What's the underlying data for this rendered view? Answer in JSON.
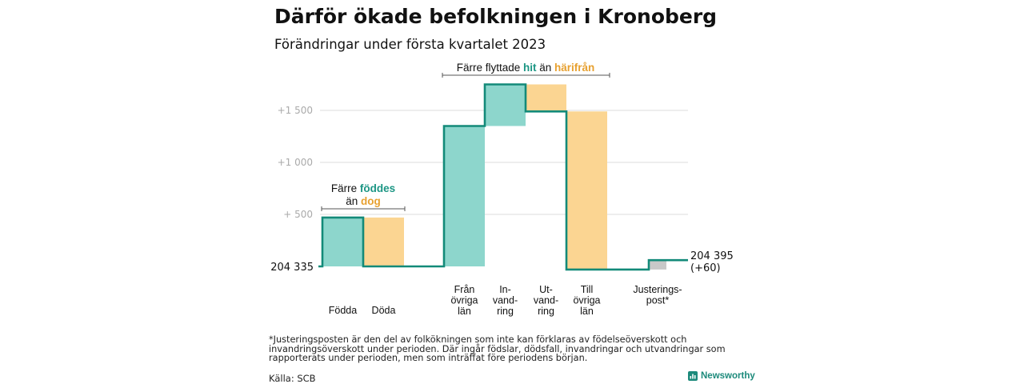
{
  "header": {
    "title": "Därför ökade befolkningen i Kronoberg",
    "subtitle": "Förändringar under första kvartalet 2023"
  },
  "chart_data": {
    "type": "waterfall",
    "baseline_label": "204 335",
    "end_label_value": "204 395",
    "end_label_change": "(+60)",
    "y_ticks": [
      {
        "value": 500,
        "label": "+ 500"
      },
      {
        "value": 1000,
        "label": "+1 000"
      },
      {
        "value": 1500,
        "label": "+1 500"
      }
    ],
    "ylim": [
      0,
      1800
    ],
    "steps": [
      {
        "id": "fodda",
        "label": [
          "Födda"
        ],
        "from": 0,
        "to": 470,
        "color": "increase"
      },
      {
        "id": "doda",
        "label": [
          "Döda"
        ],
        "from": 470,
        "to": 0,
        "color": "decrease"
      },
      {
        "id": "fran-ovriga-lan",
        "label": [
          "Från",
          "övriga",
          "län"
        ],
        "from": 0,
        "to": 1350,
        "color": "increase"
      },
      {
        "id": "invandring",
        "label": [
          "In-",
          "vand-",
          "ring"
        ],
        "from": 1350,
        "to": 1750,
        "color": "increase"
      },
      {
        "id": "utvandring",
        "label": [
          "Ut-",
          "vand-",
          "ring"
        ],
        "from": 1750,
        "to": 1490,
        "color": "decrease"
      },
      {
        "id": "till-ovriga-lan",
        "label": [
          "Till",
          "övriga",
          "län"
        ],
        "from": 1490,
        "to": -30,
        "color": "decrease"
      },
      {
        "id": "justeringspost",
        "label": [
          "Justerings-",
          "post*"
        ],
        "from": -30,
        "to": 60,
        "color": "adjustment"
      }
    ],
    "annotations": [
      {
        "id": "births-deaths",
        "line1": [
          {
            "text": "Färre ",
            "style": "plain"
          },
          {
            "text": "föddes",
            "style": "increase"
          }
        ],
        "line2": [
          {
            "text": "än ",
            "style": "plain"
          },
          {
            "text": "dog",
            "style": "decrease"
          }
        ]
      },
      {
        "id": "migration",
        "line1": [
          {
            "text": "Färre flyttade ",
            "style": "plain"
          },
          {
            "text": "hit",
            "style": "increase"
          },
          {
            "text": " än ",
            "style": "plain"
          },
          {
            "text": "härifrån",
            "style": "decrease"
          }
        ]
      }
    ],
    "colors": {
      "increase": "#8dd6cc",
      "decrease": "#fbd592",
      "adjustment": "#c8c8c8",
      "line": "#138a79",
      "increase_text": "#1c9684",
      "decrease_text": "#e7a02f",
      "grid": "#dddddd",
      "tick_text": "#aaaaaa"
    }
  },
  "footnote": "*Justeringsposten är den del av folkökningen som inte kan förklaras av födelseöverskott och invandringsöverskott under perioden. Där ingår födslar, dödsfall, invandringar och utvandringar som rapporterats under perioden, men som inträffat före periodens början.",
  "source": "Källa: SCB",
  "brand": {
    "name": "Newsworthy"
  }
}
